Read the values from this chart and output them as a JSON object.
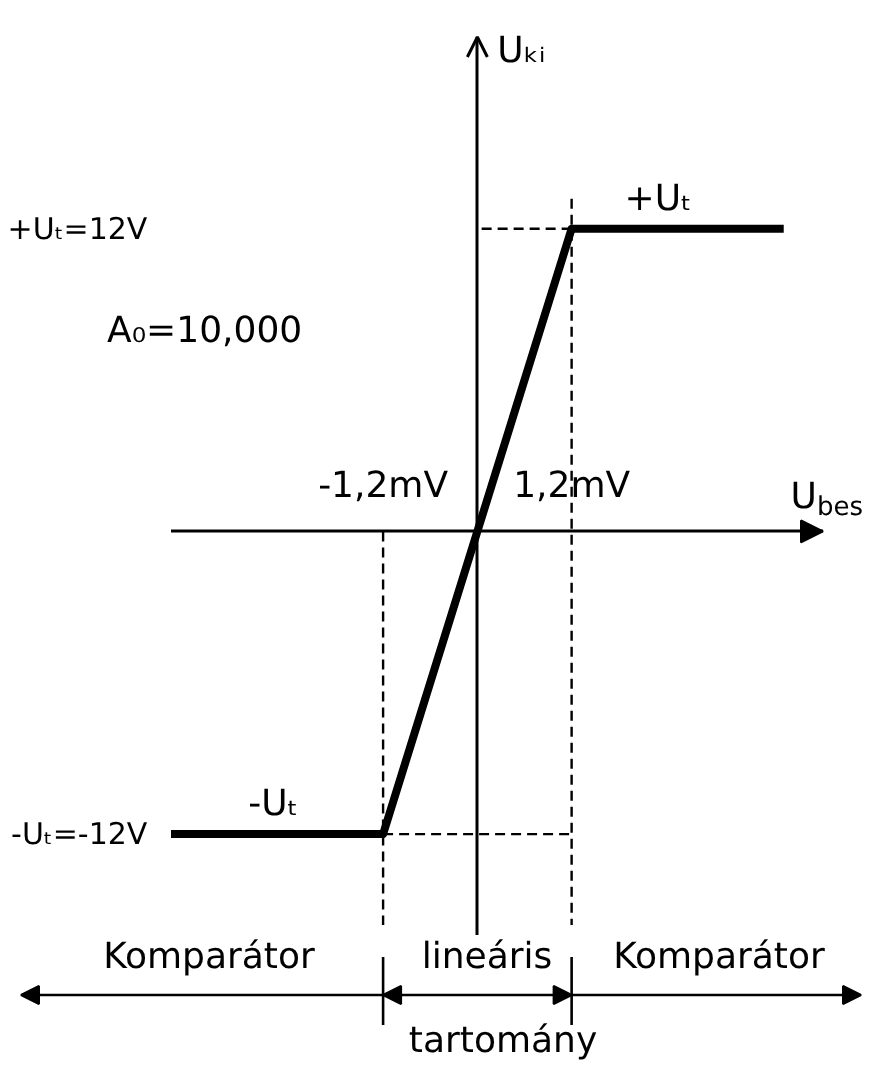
{
  "chart_data": {
    "type": "line",
    "xlabel": "U$_{bes}$",
    "ylabel": "Uₖᵢ",
    "x": [
      -3.9,
      -1.2,
      1.2,
      3.9
    ],
    "series": [
      {
        "color": "#000000",
        "values": [
          -12,
          -12,
          12,
          12
        ]
      }
    ],
    "xlim": [
      -3.9,
      4.4
    ],
    "ylim": [
      -16,
      19.6
    ],
    "xticks": [
      {
        "value": -1.2,
        "label": "-1,2mV"
      },
      {
        "value": 1.2,
        "label": "1,2mV"
      }
    ],
    "yticks": [
      {
        "value": -12,
        "label": "-Uₜ=-12V"
      },
      {
        "value": 12,
        "label": "+Uₜ=12V"
      }
    ],
    "ref_lines": [
      {
        "axis": "x",
        "value": -1.2,
        "line_style": "dashed"
      },
      {
        "axis": "x",
        "value": 1.2,
        "line_style": "dashed"
      },
      {
        "axis": "y",
        "value": 12,
        "line_style": "dashed"
      },
      {
        "axis": "y",
        "value": -12,
        "line_style": "dashed"
      }
    ],
    "annotations": [
      {
        "text": "+Uₜ",
        "x": 2.3,
        "y": 12
      },
      {
        "text": "-Uₜ",
        "x": -2.6,
        "y": -12
      },
      "A₀=10,000",
      "Komparátor",
      "lineáris",
      "Komparátor",
      "tartomány"
    ]
  }
}
